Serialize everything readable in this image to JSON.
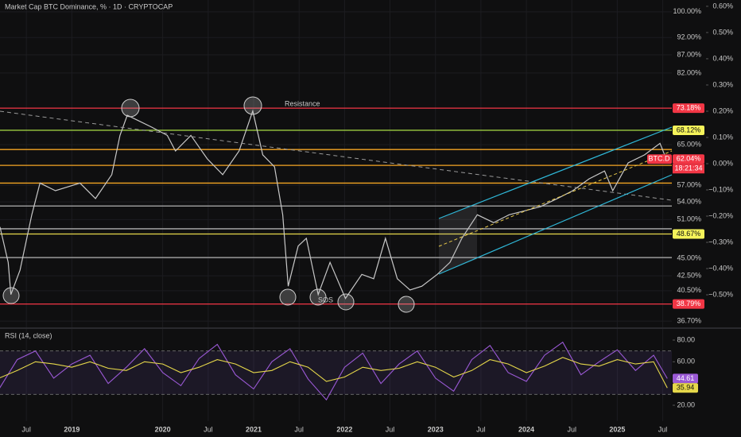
{
  "chart_data": [
    {
      "type": "line",
      "title": "Market Cap BTC Dominance, % · 1D · CRYPTOCAP",
      "log_scale": true,
      "color": "#c8c8c8",
      "x": [
        2018.21,
        2018.3,
        2018.33,
        2018.43,
        2018.56,
        2018.65,
        2018.82,
        2019.09,
        2019.26,
        2019.44,
        2019.53,
        2019.61,
        2019.7,
        2019.88,
        2020.05,
        2020.14,
        2020.31,
        2020.49,
        2020.66,
        2020.84,
        2020.99,
        2021.1,
        2021.23,
        2021.32,
        2021.38,
        2021.49,
        2021.58,
        2021.71,
        2021.84,
        2022.01,
        2022.19,
        2022.32,
        2022.45,
        2022.58,
        2022.72,
        2022.85,
        2023.02,
        2023.16,
        2023.29,
        2023.46,
        2023.64,
        2023.81,
        2023.99,
        2024.16,
        2024.34,
        2024.51,
        2024.69,
        2024.86,
        2024.95,
        2025.12,
        2025.3,
        2025.47,
        2025.54
      ],
      "values": [
        49.8,
        44.4,
        40.0,
        43.3,
        51.8,
        57.4,
        56.0,
        57.4,
        54.6,
        59.0,
        67.0,
        71.5,
        70.6,
        68.8,
        67.0,
        63.7,
        67.0,
        62.1,
        59.0,
        63.7,
        72.5,
        62.9,
        60.5,
        51.8,
        41.1,
        46.8,
        48.0,
        40.0,
        44.4,
        39.5,
        42.7,
        42.1,
        48.0,
        42.1,
        40.6,
        41.1,
        42.7,
        44.4,
        48.0,
        51.8,
        50.5,
        51.8,
        52.5,
        53.2,
        54.6,
        56.0,
        58.2,
        59.7,
        56.0,
        61.3,
        62.9,
        65.3,
        62.04
      ],
      "xlim": [
        2018.21,
        2025.6
      ],
      "xticks": [
        {
          "value": 2018.5,
          "label": "Jul"
        },
        2019,
        2020,
        {
          "value": 2020.5,
          "label": "Jul"
        },
        2021,
        {
          "value": 2021.5,
          "label": "Jul"
        },
        2022,
        {
          "value": 2022.5,
          "label": "Jul"
        },
        2023,
        {
          "value": 2023.5,
          "label": "Jul"
        },
        2024,
        {
          "value": 2024.5,
          "label": "Jul"
        },
        2025,
        {
          "value": 2025.5,
          "label": "Jul"
        }
      ],
      "ylim": [
        36.15,
        103.9
      ],
      "yticks": [
        {
          "value": 100,
          "label": "100.00%"
        },
        {
          "value": 92,
          "label": "92.00%"
        },
        {
          "value": 87,
          "label": "87.00%"
        },
        {
          "value": 82,
          "label": "82.00%"
        },
        {
          "value": 65,
          "label": "65.00%"
        },
        {
          "value": 57,
          "label": "57.00%"
        },
        {
          "value": 54,
          "label": "54.00%"
        },
        {
          "value": 51,
          "label": "51.00%"
        },
        {
          "value": 45,
          "label": "45.00%"
        },
        {
          "value": 42.5,
          "label": "42.50%"
        },
        {
          "value": 40.5,
          "label": "40.50%"
        },
        {
          "value": 36.7,
          "label": "36.70%"
        }
      ],
      "y2lim": [
        -0.618,
        0.624
      ],
      "y2ticks": [
        {
          "value": 0.6,
          "label": "0.60%"
        },
        {
          "value": 0.5,
          "label": "0.50%"
        },
        {
          "value": 0.4,
          "label": "0.40%"
        },
        {
          "value": 0.3,
          "label": "0.30%"
        },
        {
          "value": 0.2,
          "label": "0.20%"
        },
        {
          "value": 0.1,
          "label": "0.10%"
        },
        {
          "value": 0,
          "label": "0.00%"
        },
        {
          "value": -0.1,
          "label": "−0.10%"
        },
        {
          "value": -0.2,
          "label": "−0.20%"
        },
        {
          "value": -0.3,
          "label": "−0.30%"
        },
        {
          "value": -0.4,
          "label": "−0.40%"
        },
        {
          "value": -0.5,
          "label": "−0.50%"
        }
      ],
      "grid": true,
      "levels": [
        {
          "value": 73.18,
          "color": "#f23645"
        },
        {
          "value": 68.12,
          "color": "#9ccc40"
        },
        {
          "value": 64.0,
          "color": "#f5a623"
        },
        {
          "value": 60.8,
          "color": "#f5a623"
        },
        {
          "value": 57.4,
          "color": "#f5a623"
        },
        {
          "value": 53.3,
          "color": "#b0b0b0"
        },
        {
          "value": 49.5,
          "color": "#b0b0b0"
        },
        {
          "value": 48.67,
          "color": "#e6d84a"
        },
        {
          "value": 45.1,
          "color": "#b0b0b0"
        },
        {
          "value": 38.79,
          "color": "#f23645"
        }
      ],
      "price_labels": [
        {
          "value": 73.18,
          "label": "73.18%",
          "color": "#f23645"
        },
        {
          "value": 68.12,
          "label": "68.12%",
          "color": "#f5f35a"
        },
        {
          "value": 62.04,
          "label": "62.04%",
          "color": "#f23645"
        },
        {
          "value": 48.67,
          "label": "48.67%",
          "color": "#f5f35a"
        },
        {
          "value": 38.79,
          "label": "38.79%",
          "color": "#f23645"
        }
      ],
      "annotations": [
        "Resistance",
        "SOS"
      ],
      "symbol": "BTC.D",
      "countdown": "18:21:34"
    },
    {
      "type": "line",
      "title": "RSI (14, close)",
      "x": [
        2018.2,
        2018.4,
        2018.6,
        2018.8,
        2019,
        2019.2,
        2019.4,
        2019.6,
        2019.8,
        2020,
        2020.2,
        2020.4,
        2020.6,
        2020.8,
        2021,
        2021.2,
        2021.4,
        2021.6,
        2021.8,
        2022,
        2022.2,
        2022.4,
        2022.6,
        2022.8,
        2023,
        2023.2,
        2023.4,
        2023.6,
        2023.8,
        2024,
        2024.2,
        2024.4,
        2024.6,
        2024.8,
        2025,
        2025.2,
        2025.4,
        2025.55
      ],
      "series": [
        {
          "color": "#9b59d6",
          "values": [
            35,
            62,
            70,
            45,
            58,
            66,
            40,
            55,
            72,
            50,
            38,
            63,
            76,
            48,
            35,
            60,
            72,
            44,
            25,
            55,
            68,
            40,
            58,
            70,
            45,
            33,
            62,
            75,
            50,
            42,
            66,
            78,
            48,
            60,
            71,
            52,
            66,
            44.61
          ]
        },
        {
          "color": "#e6d84a",
          "values": [
            45,
            52,
            60,
            58,
            55,
            60,
            54,
            52,
            60,
            58,
            50,
            55,
            62,
            58,
            50,
            52,
            60,
            55,
            42,
            46,
            55,
            52,
            54,
            60,
            55,
            46,
            52,
            62,
            58,
            50,
            56,
            64,
            58,
            56,
            62,
            58,
            60,
            35.94
          ]
        }
      ],
      "ylim": [
        5.4,
        89.5
      ],
      "yticks": [
        {
          "value": 80,
          "label": "80.00"
        },
        {
          "value": 60,
          "label": "60.00"
        },
        {
          "value": 20,
          "label": "20.00"
        }
      ],
      "band": [
        30,
        70
      ]
    }
  ]
}
